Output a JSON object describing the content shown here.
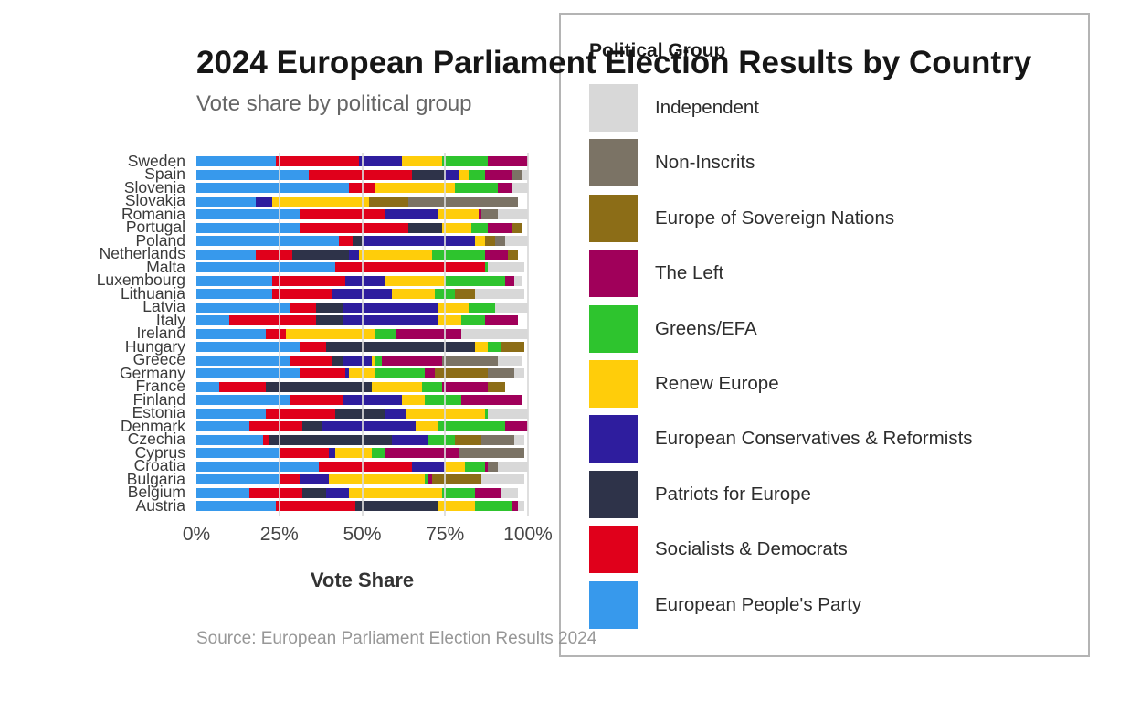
{
  "title": "2024 European Parliament Election Results by Country",
  "subtitle": "Vote share by political group",
  "source": "Source: European Parliament Election Results 2024",
  "legend": {
    "title": "Political Group",
    "items": [
      {
        "label": "Independent",
        "color": "#d8d8d8"
      },
      {
        "label": "Non-Inscrits",
        "color": "#7b7365"
      },
      {
        "label": "Europe of Sovereign Nations",
        "color": "#8c6d17"
      },
      {
        "label": "The Left",
        "color": "#a0005a"
      },
      {
        "label": "Greens/EFA",
        "color": "#2ec42e"
      },
      {
        "label": "Renew Europe",
        "color": "#ffcd0a"
      },
      {
        "label": "European Conservatives & Reformists",
        "color": "#2e1d9e"
      },
      {
        "label": "Patriots for Europe",
        "color": "#2e3349"
      },
      {
        "label": "Socialists & Democrats",
        "color": "#e0001b"
      },
      {
        "label": "European People's Party",
        "color": "#3799ec"
      }
    ]
  },
  "chart_data": {
    "type": "bar",
    "orientation": "horizontal",
    "stacked": true,
    "title": "2024 European Parliament Election Results by Country",
    "xlabel": "Vote Share",
    "ylabel": "",
    "xlim": [
      0,
      100
    ],
    "x_ticks": [
      "0%",
      "25%",
      "50%",
      "75%",
      "100%"
    ],
    "x_tick_values": [
      0,
      25,
      50,
      75,
      100
    ],
    "gridlines": [
      25,
      50,
      75,
      100
    ],
    "legend_position": "right-overlay",
    "categories": [
      "Sweden",
      "Spain",
      "Slovenia",
      "Slovakia",
      "Romania",
      "Portugal",
      "Poland",
      "Netherlands",
      "Malta",
      "Luxembourg",
      "Lithuania",
      "Latvia",
      "Italy",
      "Ireland",
      "Hungary",
      "Greece",
      "Germany",
      "France",
      "Finland",
      "Estonia",
      "Denmark",
      "Czechia",
      "Cyprus",
      "Croatia",
      "Bulgaria",
      "Belgium",
      "Austria"
    ],
    "series": [
      {
        "name": "European People's Party",
        "color": "#3799ec",
        "values": [
          24,
          34,
          46,
          18,
          31,
          31,
          43,
          18,
          42,
          23,
          23,
          28,
          10,
          21,
          31,
          28,
          31,
          7,
          28,
          21,
          16,
          20,
          25,
          37,
          25,
          16,
          24
        ]
      },
      {
        "name": "Socialists & Democrats",
        "color": "#e0001b",
        "values": [
          25,
          31,
          8,
          0,
          26,
          33,
          4,
          11,
          45,
          22,
          18,
          8,
          26,
          6,
          8,
          13,
          14,
          14,
          16,
          21,
          16,
          2,
          15,
          28,
          6,
          16,
          24
        ]
      },
      {
        "name": "Patriots for Europe",
        "color": "#2e3349",
        "values": [
          0,
          10,
          0,
          0,
          0,
          10,
          3,
          17,
          0,
          0,
          0,
          8,
          8,
          0,
          45,
          3,
          0,
          32,
          0,
          15,
          6,
          37,
          0,
          0,
          0,
          7,
          25
        ]
      },
      {
        "name": "European Conservatives & Reformists",
        "color": "#2e1d9e",
        "values": [
          13,
          4,
          0,
          5,
          16,
          0,
          34,
          3,
          0,
          12,
          18,
          29,
          29,
          0,
          0,
          9,
          1,
          0,
          18,
          6,
          28,
          11,
          2,
          10,
          9,
          7,
          0
        ]
      },
      {
        "name": "Renew Europe",
        "color": "#ffcd0a",
        "values": [
          12,
          3,
          24,
          29,
          12,
          9,
          3,
          22,
          0,
          18,
          13,
          9,
          7,
          27,
          4,
          1,
          8,
          15,
          7,
          24,
          7,
          0,
          11,
          6,
          29,
          28,
          11
        ]
      },
      {
        "name": "Greens/EFA",
        "color": "#2ec42e",
        "values": [
          14,
          5,
          13,
          0,
          0,
          5,
          0,
          16,
          1,
          18,
          6,
          8,
          7,
          6,
          4,
          2,
          15,
          6,
          11,
          1,
          20,
          8,
          4,
          6,
          1,
          10,
          11
        ]
      },
      {
        "name": "The Left",
        "color": "#a0005a",
        "values": [
          12,
          8,
          4,
          0,
          1,
          7,
          0,
          7,
          0,
          3,
          0,
          0,
          10,
          20,
          0,
          18,
          3,
          14,
          18,
          0,
          7,
          0,
          22,
          1,
          1,
          8,
          2
        ]
      },
      {
        "name": "Europe of Sovereign Nations",
        "color": "#8c6d17",
        "values": [
          0,
          0,
          0,
          12,
          0,
          3,
          3,
          3,
          0,
          0,
          6,
          0,
          0,
          0,
          7,
          0,
          16,
          5,
          0,
          0,
          0,
          8,
          0,
          0,
          15,
          0,
          0
        ]
      },
      {
        "name": "Non-Inscrits",
        "color": "#7b7365",
        "values": [
          0,
          3,
          0,
          33,
          5,
          0,
          3,
          0,
          0,
          0,
          0,
          0,
          0,
          0,
          0,
          17,
          8,
          0,
          0,
          0,
          0,
          10,
          20,
          3,
          0,
          0,
          0
        ]
      },
      {
        "name": "Independent",
        "color": "#d8d8d8",
        "values": [
          0,
          2,
          5,
          0,
          9,
          0,
          7,
          0,
          11,
          2,
          15,
          10,
          0,
          20,
          0,
          7,
          3,
          0,
          0,
          12,
          0,
          3,
          0,
          9,
          13,
          5,
          2
        ]
      }
    ]
  }
}
